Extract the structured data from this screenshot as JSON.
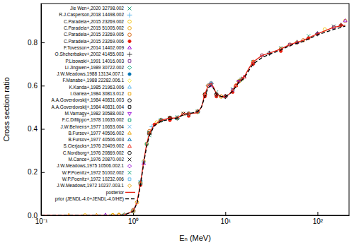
{
  "chart_data": {
    "type": "scatter",
    "x_label": "Eₙ (MeV)",
    "y_label": "Cross section ratio",
    "log": "x",
    "xlim": [
      0.1,
      220
    ],
    "xticks": [
      {
        "value": 0.1,
        "label": "10⁻¹"
      },
      {
        "value": 1,
        "label": "10⁰"
      },
      {
        "value": 10,
        "label": "10¹"
      },
      {
        "value": 100,
        "label": "10²"
      }
    ],
    "ylim": [
      0,
      0.98
    ],
    "yticks": [
      {
        "value": 0,
        "label": "0.0"
      },
      0.2,
      0.4,
      0.6,
      0.8
    ],
    "grid": false,
    "legend": "upper left",
    "series": [
      {
        "name": "Jie Wen+,2020 32798.002",
        "type": "scatter",
        "color": "#1b9e77",
        "marker": "x",
        "x": [
          1.5,
          2,
          3,
          5,
          8,
          12,
          20,
          40,
          80,
          150
        ],
        "values": [
          0.37,
          0.44,
          0.455,
          0.48,
          0.57,
          0.585,
          0.71,
          0.775,
          0.83,
          0.875
        ]
      },
      {
        "name": "R.J.Casperson,2018 14498.002",
        "type": "scatter",
        "color": "#56b4e9",
        "marker": "plus",
        "x": [
          0.8,
          1.2,
          1.6,
          2.5,
          4,
          6.5,
          10,
          14,
          20,
          30
        ],
        "values": [
          0.003,
          0.16,
          0.41,
          0.45,
          0.47,
          0.6,
          0.55,
          0.62,
          0.7,
          0.75
        ]
      },
      {
        "name": "C.Paradela+,2015 23269.002",
        "type": "scatter",
        "color": "#f0c000",
        "marker": "circle",
        "x": [
          0.3,
          0.6,
          1,
          1.3,
          1.8,
          2.5,
          4,
          6,
          9,
          15,
          30,
          60,
          120,
          200
        ],
        "values": [
          0,
          0.001,
          0.02,
          0.25,
          0.43,
          0.45,
          0.47,
          0.56,
          0.55,
          0.63,
          0.75,
          0.8,
          0.86,
          0.9
        ]
      },
      {
        "name": "C.Paradela+,2015 51005.002",
        "type": "scatter",
        "color": "#e69f00",
        "marker": "circle",
        "x": [
          0.7,
          1.1,
          1.4,
          2,
          3,
          5,
          7,
          10,
          14,
          20,
          50,
          100
        ],
        "values": [
          0.002,
          0.06,
          0.33,
          0.44,
          0.45,
          0.48,
          0.61,
          0.55,
          0.62,
          0.71,
          0.79,
          0.84
        ]
      },
      {
        "name": "C.Paradela+,2015 23269.005",
        "type": "scatter",
        "color": "#d55e00",
        "marker": "circle",
        "x": [
          1,
          1.5,
          2.5,
          3.5,
          6.5,
          9,
          13,
          25,
          40,
          70,
          150
        ],
        "values": [
          0.025,
          0.39,
          0.45,
          0.47,
          0.6,
          0.55,
          0.6,
          0.74,
          0.77,
          0.81,
          0.87
        ]
      },
      {
        "name": "C.Paradela+,2015 23269.006",
        "type": "scatter",
        "color": "#e51e10",
        "marker": "circle-filled",
        "x": [
          1.2,
          1.7,
          2.5,
          4,
          6,
          8,
          12,
          20,
          40,
          80,
          180
        ],
        "values": [
          0.14,
          0.42,
          0.44,
          0.46,
          0.55,
          0.55,
          0.57,
          0.7,
          0.76,
          0.82,
          0.88
        ]
      },
      {
        "name": "F.Tovesson+,2014 14402.009",
        "type": "scatter",
        "color": "#9400d3",
        "marker": "triangle",
        "x": [
          0.5,
          1,
          1.3,
          2,
          3,
          5,
          7,
          10,
          16,
          30,
          60,
          100,
          200
        ],
        "values": [
          0.001,
          0.02,
          0.24,
          0.44,
          0.45,
          0.48,
          0.6,
          0.55,
          0.64,
          0.75,
          0.8,
          0.84,
          0.9
        ]
      },
      {
        "name": "O.Shcherbakov+,2002 41455.003",
        "type": "scatter",
        "color": "#333333",
        "marker": "plus",
        "x": [
          1,
          1.5,
          2,
          3,
          5,
          7,
          10,
          15,
          30,
          60,
          100,
          180
        ],
        "values": [
          0.02,
          0.38,
          0.44,
          0.45,
          0.48,
          0.61,
          0.55,
          0.63,
          0.75,
          0.8,
          0.84,
          0.88
        ]
      },
      {
        "name": "P.Lisowski+,1991 14016.003",
        "type": "scatter",
        "color": "#7b3294",
        "marker": "square",
        "x": [
          1.2,
          2,
          4,
          7,
          12,
          25,
          50,
          100,
          150
        ],
        "values": [
          0.15,
          0.44,
          0.47,
          0.61,
          0.58,
          0.74,
          0.79,
          0.84,
          0.87
        ]
      },
      {
        "name": "Li Jingwen+,1989 30722.002",
        "type": "scatter",
        "color": "#009e73",
        "marker": "diamond",
        "x": [
          2,
          4,
          8,
          14
        ],
        "values": [
          0.44,
          0.47,
          0.56,
          0.62
        ]
      },
      {
        "name": "J.W.Meadows,1988 13134.007.1",
        "type": "scatter",
        "color": "#0072b2",
        "marker": "circle-filled",
        "x": [
          1.5,
          2,
          3,
          5,
          10,
          14
        ],
        "values": [
          0.38,
          0.44,
          0.45,
          0.48,
          0.55,
          0.62
        ]
      },
      {
        "name": "F.Manabe+,1988 22282.006.1",
        "type": "scatter",
        "color": "#f0e442",
        "marker": "diamond",
        "x": [
          14
        ],
        "values": [
          0.62
        ]
      },
      {
        "name": "K.Kanda+,1985 21963.006",
        "type": "scatter",
        "color": "#56b4e9",
        "marker": "triangle",
        "x": [
          1.3,
          2,
          3,
          5,
          7
        ],
        "values": [
          0.25,
          0.44,
          0.45,
          0.48,
          0.61
        ]
      },
      {
        "name": "I.Garlea+,1984 30813.012",
        "type": "scatter",
        "color": "#e69f00",
        "marker": "square",
        "x": [
          2.5,
          5,
          14
        ],
        "values": [
          0.45,
          0.48,
          0.62
        ]
      },
      {
        "name": "A.A.Goverdovskij+,1984 40831.003",
        "type": "scatter",
        "color": "#000000",
        "marker": "circle",
        "x": [
          4,
          6,
          8,
          10
        ],
        "values": [
          0.47,
          0.56,
          0.56,
          0.55
        ]
      },
      {
        "name": "A.A.Goverdovskij+,1984 40831.004",
        "type": "scatter",
        "color": "#000000",
        "marker": "square",
        "x": [
          1.2,
          1.5,
          2
        ],
        "values": [
          0.15,
          0.38,
          0.44
        ]
      },
      {
        "name": "M.Varnagy+,1982 30588.002",
        "type": "scatter",
        "color": "#9400d3",
        "marker": "triangle-down",
        "x": [
          14
        ],
        "values": [
          0.62
        ]
      },
      {
        "name": "F.C.Difilippo+,1978 10635.002",
        "type": "scatter",
        "color": "#009e73",
        "marker": "square",
        "x": [
          1.4,
          2,
          3,
          5
        ],
        "values": [
          0.33,
          0.44,
          0.45,
          0.48
        ]
      },
      {
        "name": "J.W.Behrens+,1977 10653.004",
        "type": "scatter",
        "color": "#56b4e9",
        "marker": "x",
        "x": [
          1,
          1.5,
          2,
          4,
          7,
          10,
          15,
          20,
          30
        ],
        "values": [
          0.02,
          0.38,
          0.44,
          0.47,
          0.61,
          0.55,
          0.63,
          0.71,
          0.75
        ]
      },
      {
        "name": "B.Fursov+,1977 40506.002",
        "type": "scatter",
        "color": "#e69f00",
        "marker": "triangle",
        "x": [
          0.2,
          0.4,
          0.7,
          1,
          1.2
        ],
        "values": [
          0,
          0,
          0.002,
          0.02,
          0.15
        ]
      },
      {
        "name": "B.Fursov+,1977 40506.003",
        "type": "scatter",
        "color": "#0072b2",
        "marker": "triangle",
        "x": [
          1.5,
          2,
          3,
          5
        ],
        "values": [
          0.38,
          0.44,
          0.45,
          0.48
        ]
      },
      {
        "name": "S.Cierjacks+,1976 20409.002",
        "type": "scatter",
        "color": "#e51e10",
        "marker": "triangle",
        "x": [
          1.5,
          2.5,
          4,
          6,
          8,
          10,
          13,
          16,
          20
        ],
        "values": [
          0.38,
          0.45,
          0.47,
          0.56,
          0.56,
          0.55,
          0.6,
          0.64,
          0.71
        ]
      },
      {
        "name": "C.Nordborg+,1976 20869.002",
        "type": "scatter",
        "color": "#000000",
        "marker": "circle",
        "x": [
          1.2,
          1.5,
          2,
          2.5
        ],
        "values": [
          0.15,
          0.38,
          0.44,
          0.45
        ]
      },
      {
        "name": "M.Cance+,1976 20870.002",
        "type": "scatter",
        "color": "#000000",
        "marker": "x",
        "x": [
          1.5,
          2.5,
          3.5
        ],
        "values": [
          0.38,
          0.45,
          0.47
        ]
      },
      {
        "name": "J.W.Meadows,1975 10506.002.1",
        "type": "scatter",
        "color": "#9400d3",
        "marker": "diamond",
        "x": [
          1.2,
          1.5,
          2,
          3,
          4,
          5
        ],
        "values": [
          0.15,
          0.38,
          0.44,
          0.45,
          0.47,
          0.48
        ]
      },
      {
        "name": "W.P.Poenitz+,1972 51002.002",
        "type": "scatter",
        "color": "#009e73",
        "marker": "x",
        "x": [
          1.2,
          1.5,
          2,
          3
        ],
        "values": [
          0.15,
          0.38,
          0.44,
          0.45
        ]
      },
      {
        "name": "W.P.Poenitz+,1972 10232.006",
        "type": "scatter",
        "color": "#56b4e9",
        "marker": "square",
        "x": [
          0.8,
          1,
          1.2
        ],
        "values": [
          0.003,
          0.02,
          0.15
        ]
      },
      {
        "name": "J.W.Meadows,1972 10237.003.1",
        "type": "scatter",
        "color": "#e69f00",
        "marker": "diamond",
        "x": [
          0.6,
          0.8,
          1,
          1.2,
          1.5,
          2,
          3,
          4,
          5
        ],
        "values": [
          0.001,
          0.003,
          0.02,
          0.15,
          0.38,
          0.44,
          0.45,
          0.47,
          0.48
        ]
      },
      {
        "name": "posterior",
        "type": "line",
        "color": "#e51e10",
        "line_style": "solid",
        "x": [
          0.1,
          0.5,
          0.8,
          1,
          1.1,
          1.2,
          1.3,
          1.4,
          1.5,
          1.7,
          2,
          2.5,
          3,
          3.5,
          4,
          5,
          5.5,
          6,
          6.5,
          7,
          7.5,
          8,
          9,
          10,
          11,
          12,
          13,
          14,
          15,
          16,
          18,
          20,
          25,
          30,
          40,
          50,
          70,
          100,
          150,
          200
        ],
        "values": [
          0,
          0.0005,
          0.002,
          0.02,
          0.06,
          0.15,
          0.25,
          0.33,
          0.38,
          0.42,
          0.44,
          0.45,
          0.45,
          0.47,
          0.47,
          0.475,
          0.5,
          0.56,
          0.6,
          0.61,
          0.59,
          0.56,
          0.55,
          0.55,
          0.56,
          0.58,
          0.6,
          0.62,
          0.63,
          0.64,
          0.68,
          0.71,
          0.74,
          0.75,
          0.77,
          0.79,
          0.81,
          0.84,
          0.87,
          0.88
        ]
      },
      {
        "name": "prior (JENDL-4.0+JENDL-4.0/HE)",
        "type": "line",
        "color": "#000000",
        "line_style": "dashed",
        "x": [
          0.1,
          0.5,
          0.8,
          1,
          1.1,
          1.2,
          1.3,
          1.4,
          1.5,
          1.7,
          2,
          2.5,
          3,
          3.5,
          4,
          5,
          5.5,
          6,
          6.5,
          7,
          7.5,
          8,
          9,
          10,
          11,
          12,
          13,
          14,
          15,
          16,
          18,
          20,
          25,
          30,
          40,
          50,
          70,
          100,
          150,
          200
        ],
        "values": [
          0,
          0.0005,
          0.002,
          0.018,
          0.055,
          0.14,
          0.24,
          0.32,
          0.37,
          0.415,
          0.435,
          0.445,
          0.45,
          0.465,
          0.47,
          0.48,
          0.5,
          0.55,
          0.59,
          0.6,
          0.585,
          0.56,
          0.55,
          0.55,
          0.56,
          0.575,
          0.595,
          0.615,
          0.625,
          0.635,
          0.67,
          0.7,
          0.73,
          0.745,
          0.765,
          0.785,
          0.805,
          0.835,
          0.86,
          0.875
        ]
      }
    ]
  }
}
